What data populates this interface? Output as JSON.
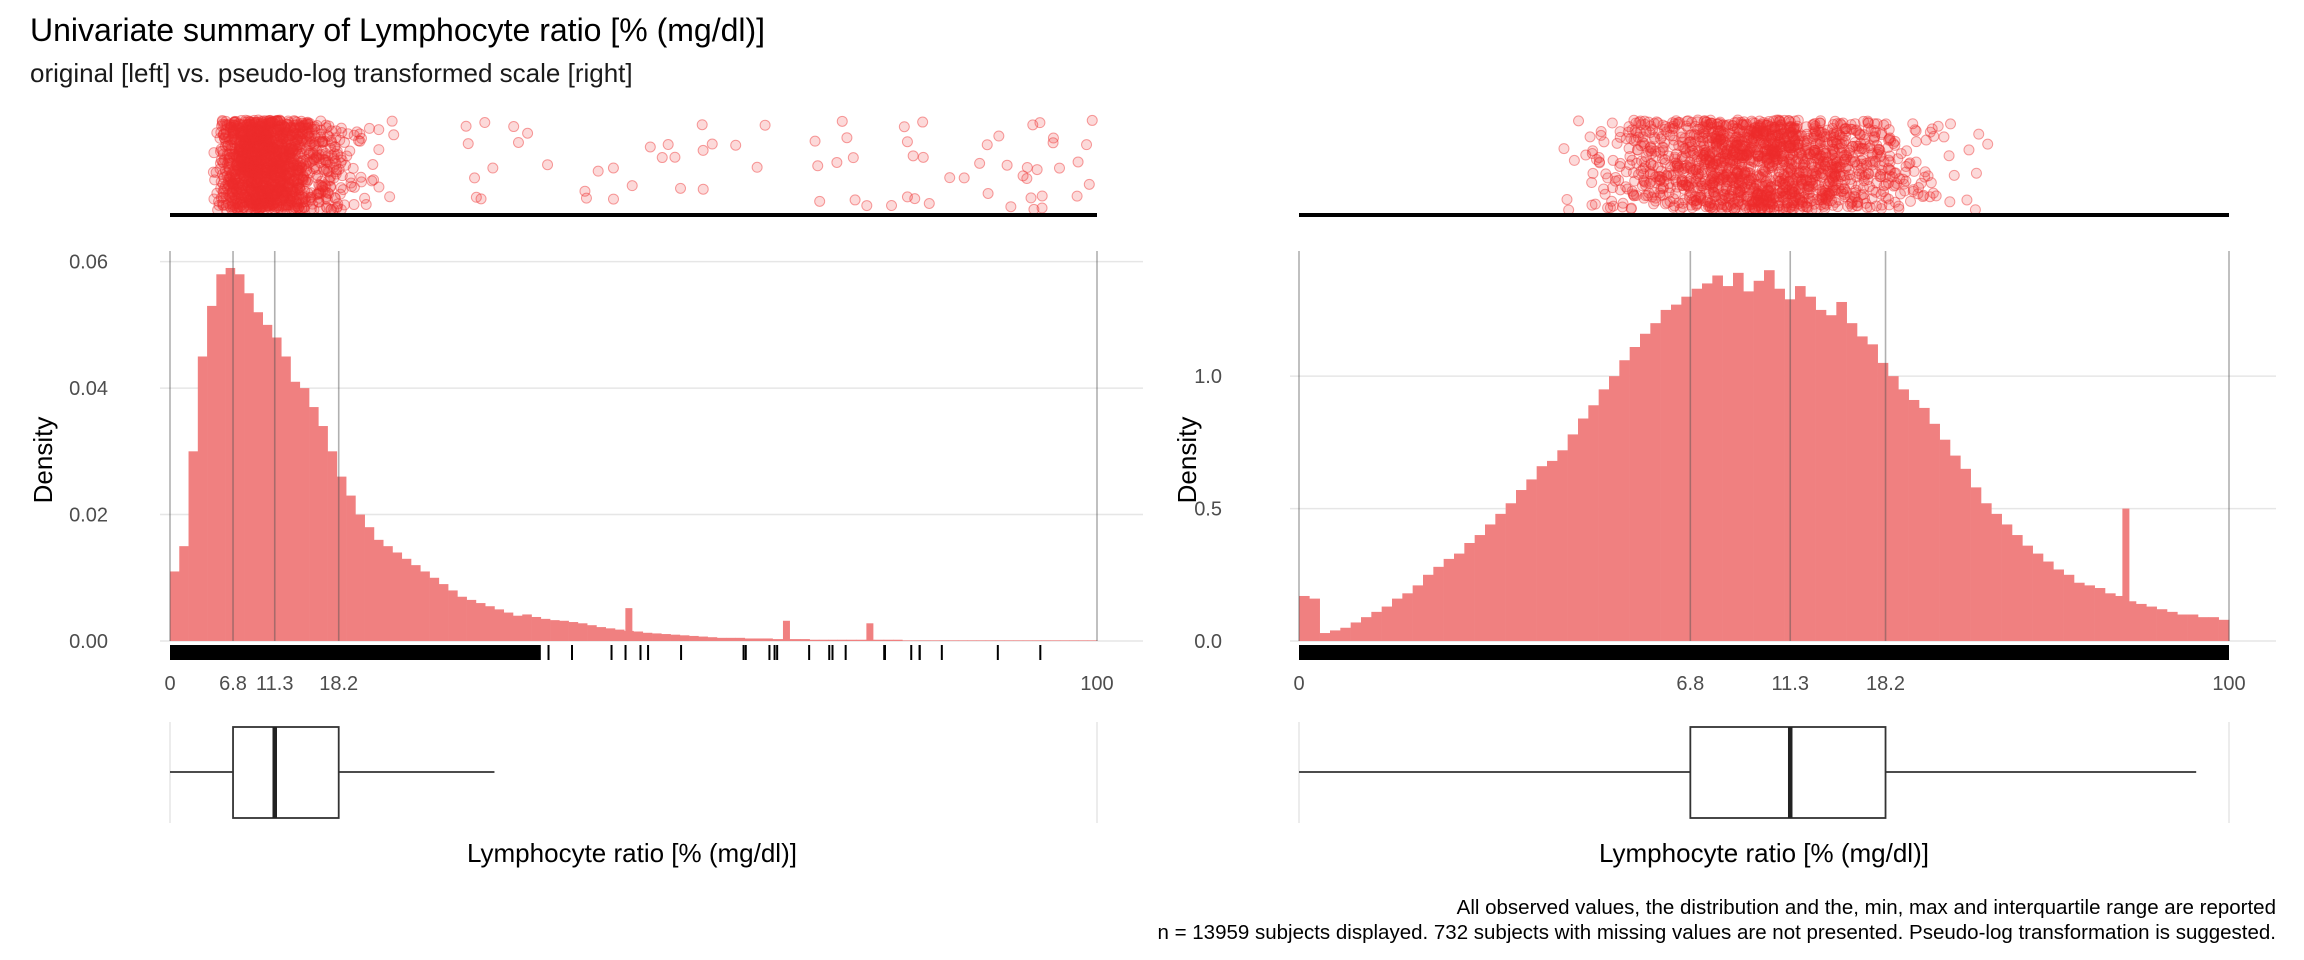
{
  "title": "Univariate summary of Lymphocyte ratio [% (mg/dl)]",
  "subtitle": "original [left] vs. pseudo-log transformed scale [right]",
  "caption_line1": "All observed values, the distribution and the, min, max and interquartile range are reported",
  "caption_line2": "n = 13959 subjects displayed. 732 subjects with missing values are not presented. Pseudo-log transformation is suggested.",
  "colors": {
    "points": "#EE2C2C",
    "bars": "#F08080",
    "grid": "#e6e6e6",
    "vline": "#9a9a9a"
  },
  "chart_data": [
    {
      "type": "bar",
      "panel": "original scale [left]",
      "xlabel": "Lymphocyte ratio [% (mg/dl)]",
      "ylabel": "Density",
      "xlim": [
        0,
        100
      ],
      "ylim": [
        0,
        0.062
      ],
      "x_ticks": [
        0,
        6.8,
        11.3,
        18.2,
        100
      ],
      "x_tick_labels": [
        "0",
        "6.8",
        "11.3",
        "18.2",
        "100"
      ],
      "y_ticks": [
        0,
        0.02,
        0.04,
        0.06
      ],
      "y_tick_labels": [
        "0.00",
        "0.02",
        "0.04",
        "0.06"
      ],
      "grid": true,
      "bins": {
        "start": 0,
        "width": 1.0
      },
      "values": [
        0.011,
        0.015,
        0.03,
        0.045,
        0.053,
        0.058,
        0.059,
        0.058,
        0.055,
        0.052,
        0.05,
        0.048,
        0.045,
        0.041,
        0.04,
        0.037,
        0.034,
        0.03,
        0.026,
        0.023,
        0.02,
        0.018,
        0.016,
        0.015,
        0.014,
        0.013,
        0.012,
        0.011,
        0.01,
        0.009,
        0.008,
        0.007,
        0.0065,
        0.006,
        0.0055,
        0.005,
        0.0045,
        0.004,
        0.0042,
        0.0038,
        0.0035,
        0.0033,
        0.0032,
        0.003,
        0.0028,
        0.0025,
        0.0022,
        0.002,
        0.0018,
        0.0016,
        0.0015,
        0.0013,
        0.0012,
        0.0011,
        0.001,
        0.0009,
        0.0008,
        0.0007,
        0.0006,
        0.0005,
        0.0005,
        0.0005,
        0.0004,
        0.0004,
        0.0004,
        0.0003,
        0.0003,
        0.0003,
        0.0003,
        0.0002,
        0.0002,
        0.0002,
        0.0002,
        0.0002,
        0.0002,
        0.0002,
        0.0002,
        0.0002,
        0.0002,
        0.0001,
        0.0001,
        0.0001,
        0.0001,
        0.0001,
        0.0001,
        0.0001,
        0.0001,
        0.0001,
        0.0001,
        0.0001,
        0.0001,
        0.0001,
        0.0001,
        0.0001,
        0.0001,
        0.0001,
        0.0001,
        0.0001,
        0.0001,
        0.0001
      ],
      "spikes": [
        {
          "x": 49.5,
          "value": 0.0052
        },
        {
          "x": 66.5,
          "value": 0.0032
        },
        {
          "x": 75.5,
          "value": 0.0028
        }
      ],
      "min": 0,
      "q1": 6.8,
      "median": 11.3,
      "q3": 18.2,
      "max": 100,
      "boxplot_whiskers": [
        0,
        35
      ]
    },
    {
      "type": "bar",
      "panel": "pseudo-log transformed scale [right]",
      "xlabel": "Lymphocyte ratio [% (mg/dl)]",
      "ylabel": "Density",
      "x_scale": "pseudo-log",
      "xlim": [
        0,
        100
      ],
      "ylim": [
        0,
        1.48
      ],
      "x_ticks": [
        0,
        6.8,
        11.3,
        18.2,
        100
      ],
      "x_tick_labels": [
        "0",
        "6.8",
        "11.3",
        "18.2",
        "100"
      ],
      "y_ticks": [
        0,
        0.5,
        1.0
      ],
      "y_tick_labels": [
        "0.0",
        "0.5",
        "1.0"
      ],
      "grid": true,
      "values": [
        0.17,
        0.16,
        0.03,
        0.04,
        0.05,
        0.07,
        0.09,
        0.11,
        0.13,
        0.16,
        0.18,
        0.21,
        0.25,
        0.28,
        0.31,
        0.33,
        0.37,
        0.4,
        0.44,
        0.48,
        0.52,
        0.57,
        0.61,
        0.66,
        0.68,
        0.72,
        0.78,
        0.84,
        0.89,
        0.95,
        1.0,
        1.06,
        1.11,
        1.16,
        1.2,
        1.25,
        1.27,
        1.3,
        1.33,
        1.35,
        1.38,
        1.34,
        1.39,
        1.32,
        1.36,
        1.4,
        1.33,
        1.29,
        1.34,
        1.3,
        1.25,
        1.23,
        1.28,
        1.2,
        1.15,
        1.12,
        1.05,
        1.0,
        0.95,
        0.91,
        0.88,
        0.82,
        0.76,
        0.7,
        0.65,
        0.58,
        0.52,
        0.48,
        0.44,
        0.4,
        0.36,
        0.33,
        0.3,
        0.27,
        0.25,
        0.22,
        0.21,
        0.2,
        0.18,
        0.17,
        0.15,
        0.14,
        0.13,
        0.12,
        0.11,
        0.1,
        0.1,
        0.09,
        0.09,
        0.08
      ],
      "spikes": [
        {
          "x": 9.0,
          "value": 1.22
        },
        {
          "x": 60.0,
          "value": 0.5
        }
      ],
      "min": 0,
      "q1": 6.8,
      "median": 11.3,
      "q3": 18.2,
      "max": 100,
      "boxplot_whiskers": [
        0,
        85
      ]
    }
  ]
}
